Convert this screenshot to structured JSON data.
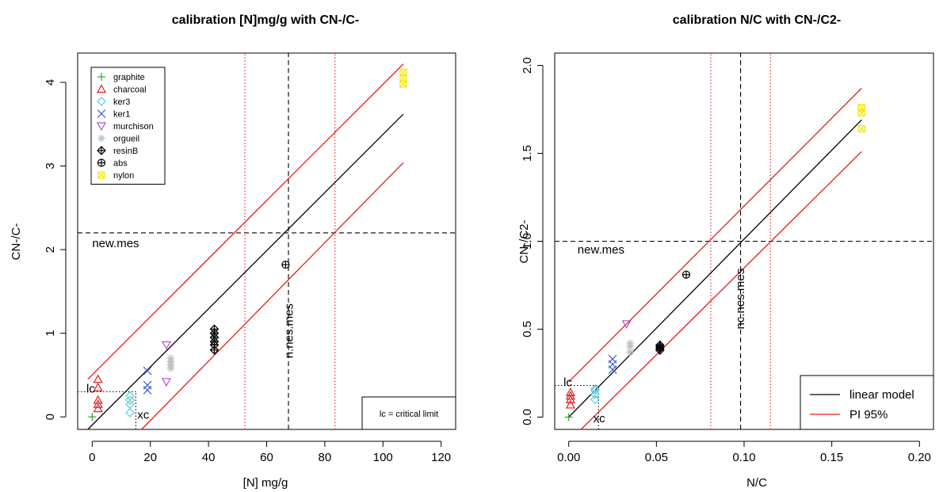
{
  "chart_data": [
    {
      "type": "scatter",
      "title": "calibration [N]mg/g with CN-/C-",
      "xlabel": "[N] mg/g",
      "ylabel": "CN-/C-",
      "xlim": [
        -5,
        125
      ],
      "ylim": [
        -0.15,
        4.35
      ],
      "xticks": [
        0,
        20,
        40,
        60,
        80,
        100,
        120
      ],
      "yticks": [
        0,
        1,
        2,
        3,
        4
      ],
      "legend": {
        "placement": "top-left",
        "entries": [
          {
            "name": "graphite",
            "color": "#2ca02c",
            "symbol": "plus"
          },
          {
            "name": "charcoal",
            "color": "#e41a1c",
            "symbol": "triangle-up"
          },
          {
            "name": "ker3",
            "color": "#5bc8e0",
            "symbol": "diamond"
          },
          {
            "name": "ker1",
            "color": "#3a5fcd",
            "symbol": "cross"
          },
          {
            "name": "murchison",
            "color": "#b452c8",
            "symbol": "triangle-down"
          },
          {
            "name": "orgueil",
            "color": "#bebebe",
            "symbol": "asterisk"
          },
          {
            "name": "resinB",
            "color": "#000000",
            "symbol": "diamond-plus"
          },
          {
            "name": "abs",
            "color": "#000000",
            "symbol": "circle-plus"
          },
          {
            "name": "nylon",
            "color": "#f5e600",
            "symbol": "square-cross"
          }
        ]
      },
      "series": [
        {
          "name": "graphite",
          "points": [
            [
              0,
              0.0
            ]
          ]
        },
        {
          "name": "charcoal",
          "points": [
            [
              2,
              0.1
            ],
            [
              2,
              0.15
            ],
            [
              2,
              0.2
            ],
            [
              2,
              0.35
            ],
            [
              2,
              0.45
            ]
          ]
        },
        {
          "name": "ker3",
          "points": [
            [
              13,
              0.05
            ],
            [
              13,
              0.15
            ],
            [
              13,
              0.2
            ],
            [
              13,
              0.25
            ]
          ]
        },
        {
          "name": "ker1",
          "points": [
            [
              19,
              0.32
            ],
            [
              19,
              0.38
            ],
            [
              19,
              0.55
            ]
          ]
        },
        {
          "name": "murchison",
          "points": [
            [
              25.5,
              0.42
            ],
            [
              25.5,
              0.86
            ]
          ]
        },
        {
          "name": "orgueil",
          "points": [
            [
              27,
              0.58
            ],
            [
              27,
              0.62
            ],
            [
              27,
              0.66
            ],
            [
              27,
              0.7
            ]
          ]
        },
        {
          "name": "resinB",
          "points": [
            [
              42,
              0.8
            ],
            [
              42,
              0.86
            ],
            [
              42,
              0.9
            ],
            [
              42,
              0.95
            ],
            [
              42,
              1.0
            ],
            [
              42,
              1.05
            ]
          ]
        },
        {
          "name": "abs",
          "points": [
            [
              66.5,
              1.82
            ]
          ]
        },
        {
          "name": "nylon",
          "points": [
            [
              107,
              3.98
            ],
            [
              107,
              4.05
            ],
            [
              107,
              4.12
            ]
          ]
        }
      ],
      "lines": [
        {
          "name": "linear model",
          "color": "#000000",
          "style": "solid",
          "points": [
            [
              -1.5,
              -0.15
            ],
            [
              107,
              3.62
            ]
          ]
        },
        {
          "name": "PI upper",
          "color": "#e41a1c",
          "style": "solid",
          "points": [
            [
              -1.5,
              0.45
            ],
            [
              107,
              4.22
            ]
          ]
        },
        {
          "name": "PI lower",
          "color": "#e41a1c",
          "style": "solid",
          "points": [
            [
              17,
              -0.15
            ],
            [
              107,
              3.04
            ]
          ]
        }
      ],
      "hlines": [
        {
          "y": 2.2,
          "color": "#000000",
          "style": "dashed"
        },
        {
          "y": 0.3,
          "color": "#000000",
          "style": "dotted",
          "x0": -5,
          "x1": 15
        }
      ],
      "vlines": [
        {
          "x": 67.5,
          "color": "#000000",
          "style": "dashed"
        },
        {
          "x": 52.5,
          "color": "#e41a1c",
          "style": "dotted"
        },
        {
          "x": 83.5,
          "color": "#e41a1c",
          "style": "dotted"
        },
        {
          "x": 15,
          "color": "#000000",
          "style": "dotted",
          "y0": -0.15,
          "y1": 0.3
        }
      ],
      "annotations": [
        {
          "text": "new.mes",
          "x": 0,
          "y": 2.03,
          "rotate": 0
        },
        {
          "text": "n.nes.mes",
          "x": 69,
          "y": 0.7,
          "rotate": -90
        },
        {
          "text": "lc",
          "x": -2,
          "y": 0.29,
          "rotate": 0
        },
        {
          "text": "xc",
          "x": 15.5,
          "y": -0.02,
          "rotate": 0
        }
      ],
      "boxnote": "lc = critical limit"
    },
    {
      "type": "scatter",
      "title": "calibration N/C with CN-/C2-",
      "xlabel": "N/C",
      "ylabel": "CN-/C2-",
      "xlim": [
        -0.008,
        0.208
      ],
      "ylim": [
        -0.07,
        2.07
      ],
      "xticks": [
        0.0,
        0.05,
        0.1,
        0.15,
        0.2
      ],
      "xticklabels": [
        "0.00",
        "0.05",
        "0.10",
        "0.15",
        "0.20"
      ],
      "yticks": [
        0.0,
        0.5,
        1.0,
        1.5,
        2.0
      ],
      "yticklabels": [
        "0.0",
        "0.5",
        "1.0",
        "1.5",
        "2.0"
      ],
      "legend": {
        "placement": "bottom-right",
        "entries": [
          {
            "name": "linear model",
            "color": "#000000"
          },
          {
            "name": "PI 95%",
            "color": "#e41a1c"
          }
        ]
      },
      "series": [
        {
          "name": "graphite",
          "points": [
            [
              0.0,
              0.0
            ]
          ]
        },
        {
          "name": "charcoal",
          "points": [
            [
              0.001,
              0.07
            ],
            [
              0.001,
              0.1
            ],
            [
              0.001,
              0.12
            ],
            [
              0.001,
              0.14
            ]
          ]
        },
        {
          "name": "ker3",
          "points": [
            [
              0.015,
              0.1
            ],
            [
              0.015,
              0.13
            ],
            [
              0.015,
              0.15
            ],
            [
              0.015,
              0.16
            ]
          ]
        },
        {
          "name": "ker1",
          "points": [
            [
              0.025,
              0.27
            ],
            [
              0.025,
              0.3
            ],
            [
              0.025,
              0.33
            ]
          ]
        },
        {
          "name": "murchison",
          "points": [
            [
              0.033,
              0.53
            ]
          ]
        },
        {
          "name": "orgueil",
          "points": [
            [
              0.035,
              0.37
            ],
            [
              0.035,
              0.4
            ],
            [
              0.035,
              0.42
            ]
          ]
        },
        {
          "name": "resinB",
          "points": [
            [
              0.052,
              0.38
            ],
            [
              0.052,
              0.39
            ],
            [
              0.052,
              0.4
            ],
            [
              0.052,
              0.41
            ]
          ]
        },
        {
          "name": "abs",
          "points": [
            [
              0.067,
              0.81
            ]
          ]
        },
        {
          "name": "nylon",
          "points": [
            [
              0.167,
              1.64
            ],
            [
              0.167,
              1.73
            ],
            [
              0.167,
              1.76
            ]
          ]
        }
      ],
      "lines": [
        {
          "name": "linear model",
          "color": "#000000",
          "style": "solid",
          "points": [
            [
              0.0,
              0.0
            ],
            [
              0.167,
              1.69
            ]
          ]
        },
        {
          "name": "PI upper",
          "color": "#e41a1c",
          "style": "solid",
          "points": [
            [
              0.0,
              0.2
            ],
            [
              0.167,
              1.87
            ]
          ]
        },
        {
          "name": "PI lower",
          "color": "#e41a1c",
          "style": "solid",
          "points": [
            [
              0.007,
              -0.07
            ],
            [
              0.167,
              1.51
            ]
          ]
        }
      ],
      "hlines": [
        {
          "y": 1.0,
          "color": "#000000",
          "style": "dashed"
        },
        {
          "y": 0.18,
          "color": "#000000",
          "style": "dotted",
          "x0": -0.008,
          "x1": 0.017
        }
      ],
      "vlines": [
        {
          "x": 0.098,
          "color": "#000000",
          "style": "dashed"
        },
        {
          "x": 0.081,
          "color": "#e41a1c",
          "style": "dotted"
        },
        {
          "x": 0.115,
          "color": "#e41a1c",
          "style": "dotted"
        },
        {
          "x": 0.017,
          "color": "#000000",
          "style": "dotted",
          "y0": -0.07,
          "y1": 0.18
        }
      ],
      "annotations": [
        {
          "text": "new.mes",
          "x": 0.005,
          "y": 0.93,
          "rotate": 0
        },
        {
          "text": "nc.nes.mes",
          "x": 0.1,
          "y": 0.5,
          "rotate": -90
        },
        {
          "text": "lc",
          "x": -0.003,
          "y": 0.175,
          "rotate": 0
        },
        {
          "text": "xc",
          "x": 0.014,
          "y": -0.03,
          "rotate": 0
        }
      ]
    }
  ]
}
